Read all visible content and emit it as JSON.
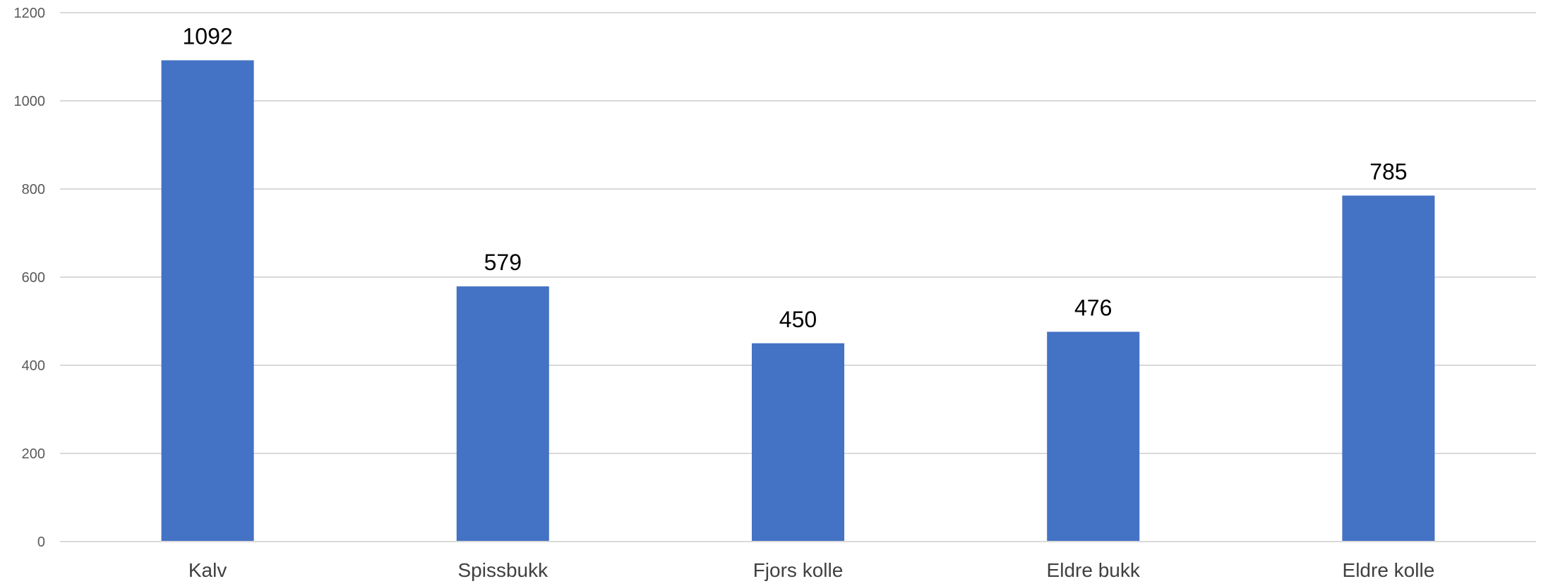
{
  "chart_data": {
    "type": "bar",
    "title": "",
    "xlabel": "",
    "ylabel": "",
    "categories": [
      "Kalv",
      "Spissbukk",
      "Fjors kolle",
      "Eldre bukk",
      "Eldre kolle"
    ],
    "values": [
      1092,
      579,
      450,
      476,
      785
    ],
    "ylim": [
      0,
      1200
    ],
    "yticks": [
      0,
      200,
      400,
      600,
      800,
      1000,
      1200
    ],
    "grid": true,
    "legend": "none",
    "data_labels": true,
    "bar_color": "#4472C4"
  }
}
